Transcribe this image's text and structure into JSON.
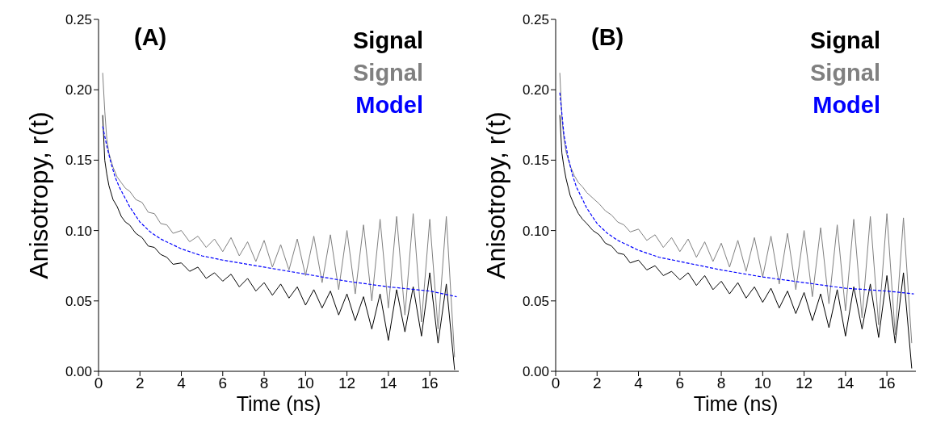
{
  "chart_data": [
    {
      "type": "line",
      "title": "(A)",
      "xlabel": "Time (ns)",
      "ylabel": "Anisotropy, r(t)",
      "xlim": [
        0,
        17.4
      ],
      "xticks": [
        0,
        2,
        4,
        6,
        8,
        10,
        12,
        14,
        16
      ],
      "ylim": [
        0,
        0.25
      ],
      "yticks": [
        {
          "value": 0,
          "label": "0.00"
        },
        {
          "value": 0.05,
          "label": "0.05"
        },
        {
          "value": 0.1,
          "label": "0.10"
        },
        {
          "value": 0.15,
          "label": "0.15"
        },
        {
          "value": 0.2,
          "label": "0.20"
        },
        {
          "value": 0.25,
          "label": "0.25"
        }
      ],
      "grid": false,
      "legend": "top right",
      "marker": "none",
      "x": [
        0.2,
        0.3,
        0.4,
        0.5,
        0.7,
        0.9,
        1.1,
        1.3,
        1.5,
        1.8,
        2.1,
        2.4,
        2.7,
        3.0,
        3.3,
        3.6,
        4.0,
        4.4,
        4.8,
        5.2,
        5.6,
        6.0,
        6.4,
        6.8,
        7.2,
        7.6,
        8.0,
        8.4,
        8.8,
        9.2,
        9.6,
        10.0,
        10.4,
        10.8,
        11.2,
        11.6,
        12.0,
        12.4,
        12.8,
        13.2,
        13.6,
        14.0,
        14.4,
        14.8,
        15.2,
        15.6,
        16.0,
        16.4,
        16.8,
        17.2
      ],
      "series": [
        {
          "name": "Signal",
          "color": "#000000",
          "line_style": "solid",
          "values": [
            0.182,
            0.15,
            0.14,
            0.132,
            0.122,
            0.117,
            0.11,
            0.106,
            0.104,
            0.098,
            0.095,
            0.089,
            0.088,
            0.083,
            0.081,
            0.076,
            0.077,
            0.071,
            0.074,
            0.066,
            0.07,
            0.064,
            0.069,
            0.06,
            0.066,
            0.057,
            0.063,
            0.054,
            0.062,
            0.052,
            0.06,
            0.047,
            0.058,
            0.045,
            0.057,
            0.04,
            0.055,
            0.036,
            0.053,
            0.03,
            0.055,
            0.022,
            0.058,
            0.028,
            0.06,
            0.025,
            0.07,
            0.02,
            0.062,
            0.001
          ]
        },
        {
          "name": "Signal",
          "color": "#808080",
          "line_style": "solid",
          "values": [
            0.212,
            0.185,
            0.165,
            0.155,
            0.145,
            0.138,
            0.134,
            0.13,
            0.128,
            0.122,
            0.12,
            0.113,
            0.112,
            0.105,
            0.104,
            0.098,
            0.1,
            0.092,
            0.096,
            0.088,
            0.094,
            0.085,
            0.095,
            0.082,
            0.092,
            0.078,
            0.093,
            0.074,
            0.09,
            0.072,
            0.094,
            0.068,
            0.096,
            0.063,
            0.097,
            0.058,
            0.1,
            0.055,
            0.104,
            0.05,
            0.108,
            0.045,
            0.11,
            0.04,
            0.112,
            0.035,
            0.108,
            0.03,
            0.11,
            0.01
          ]
        },
        {
          "name": "Model",
          "color": "#0000ff",
          "line_style": "dashed",
          "x": [
            0.2,
            0.4,
            0.6,
            0.8,
            1,
            1.5,
            2,
            2.5,
            3,
            4,
            5,
            6,
            8,
            10,
            12,
            14,
            16,
            17.3
          ],
          "values": [
            0.174,
            0.16,
            0.148,
            0.138,
            0.131,
            0.117,
            0.106,
            0.099,
            0.094,
            0.087,
            0.082,
            0.079,
            0.074,
            0.069,
            0.064,
            0.06,
            0.057,
            0.053
          ]
        }
      ]
    },
    {
      "type": "line",
      "title": "(B)",
      "xlabel": "Time (ns)",
      "ylabel": "Anisotropy, r(t)",
      "xlim": [
        0,
        17.4
      ],
      "xticks": [
        0,
        2,
        4,
        6,
        8,
        10,
        12,
        14,
        16
      ],
      "ylim": [
        0,
        0.25
      ],
      "yticks": [
        {
          "value": 0,
          "label": "0.00"
        },
        {
          "value": 0.05,
          "label": "0.05"
        },
        {
          "value": 0.1,
          "label": "0.10"
        },
        {
          "value": 0.15,
          "label": "0.15"
        },
        {
          "value": 0.2,
          "label": "0.20"
        },
        {
          "value": 0.25,
          "label": "0.25"
        }
      ],
      "grid": false,
      "legend": "top right",
      "marker": "none",
      "x": [
        0.2,
        0.3,
        0.4,
        0.5,
        0.7,
        0.9,
        1.1,
        1.3,
        1.5,
        1.8,
        2.1,
        2.4,
        2.7,
        3.0,
        3.3,
        3.6,
        4.0,
        4.4,
        4.8,
        5.2,
        5.6,
        6.0,
        6.4,
        6.8,
        7.2,
        7.6,
        8.0,
        8.4,
        8.8,
        9.2,
        9.6,
        10.0,
        10.4,
        10.8,
        11.2,
        11.6,
        12.0,
        12.4,
        12.8,
        13.2,
        13.6,
        14.0,
        14.4,
        14.8,
        15.2,
        15.6,
        16.0,
        16.4,
        16.8,
        17.2
      ],
      "series": [
        {
          "name": "Signal",
          "color": "#000000",
          "line_style": "solid",
          "values": [
            0.182,
            0.155,
            0.145,
            0.137,
            0.125,
            0.118,
            0.112,
            0.108,
            0.105,
            0.1,
            0.097,
            0.091,
            0.089,
            0.084,
            0.083,
            0.077,
            0.079,
            0.072,
            0.075,
            0.068,
            0.071,
            0.065,
            0.07,
            0.061,
            0.068,
            0.058,
            0.064,
            0.055,
            0.063,
            0.052,
            0.06,
            0.049,
            0.059,
            0.045,
            0.057,
            0.041,
            0.056,
            0.036,
            0.055,
            0.031,
            0.058,
            0.025,
            0.06,
            0.03,
            0.062,
            0.024,
            0.068,
            0.02,
            0.07,
            0.002
          ]
        },
        {
          "name": "Signal",
          "color": "#808080",
          "line_style": "solid",
          "values": [
            0.212,
            0.18,
            0.165,
            0.156,
            0.146,
            0.139,
            0.134,
            0.131,
            0.127,
            0.123,
            0.119,
            0.114,
            0.111,
            0.106,
            0.104,
            0.099,
            0.101,
            0.093,
            0.097,
            0.088,
            0.095,
            0.085,
            0.094,
            0.081,
            0.092,
            0.078,
            0.091,
            0.074,
            0.093,
            0.071,
            0.095,
            0.067,
            0.096,
            0.062,
            0.098,
            0.058,
            0.1,
            0.053,
            0.102,
            0.048,
            0.104,
            0.043,
            0.108,
            0.038,
            0.11,
            0.033,
            0.112,
            0.026,
            0.109,
            0.02
          ]
        },
        {
          "name": "Model",
          "color": "#0000ff",
          "line_style": "dashed",
          "x": [
            0.2,
            0.4,
            0.6,
            0.8,
            1,
            1.5,
            2,
            2.5,
            3,
            4,
            5,
            6,
            8,
            10,
            12,
            14,
            16,
            17.3
          ],
          "values": [
            0.198,
            0.168,
            0.152,
            0.14,
            0.131,
            0.116,
            0.105,
            0.098,
            0.093,
            0.086,
            0.081,
            0.078,
            0.072,
            0.067,
            0.063,
            0.059,
            0.057,
            0.055
          ]
        }
      ]
    }
  ]
}
